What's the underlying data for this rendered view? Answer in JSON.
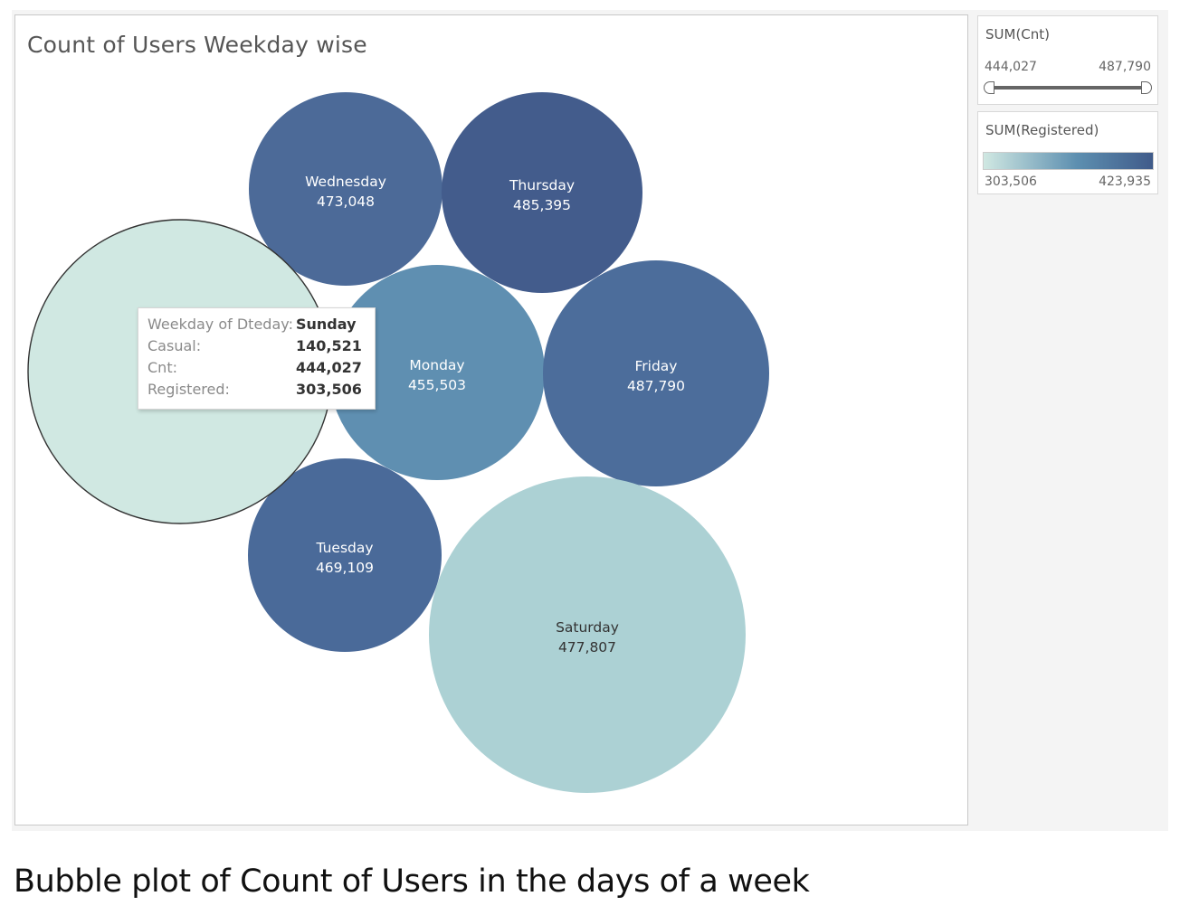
{
  "title": "Count of Users Weekday wise",
  "caption": "Bubble plot of Count of Users in the days of a week",
  "colors": {
    "min_registered": "#d0e8e2",
    "mid_registered": "#5d8fb0",
    "max_registered": "#405b8a",
    "label_light": "#ffffff",
    "label_dark": "#333333",
    "highlight_stroke": "#333333"
  },
  "chart_data": {
    "type": "bubble",
    "title": "Count of Users Weekday wise",
    "size_measure": "SUM(Cnt)",
    "color_measure": "SUM(Registered)",
    "points": [
      {
        "label": "Wednesday",
        "cnt": 473048,
        "cnt_text": "473,048",
        "color": "#4c6a98",
        "text_color": "#ffffff",
        "highlighted": false,
        "show_label": true
      },
      {
        "label": "Thursday",
        "cnt": 485395,
        "cnt_text": "485,395",
        "color": "#435c8c",
        "text_color": "#ffffff",
        "highlighted": false,
        "show_label": true
      },
      {
        "label": "Sunday",
        "cnt": 444027,
        "cnt_text": "444,027",
        "color": "#d0e8e2",
        "text_color": "#333333",
        "highlighted": true,
        "show_label": false
      },
      {
        "label": "Monday",
        "cnt": 455503,
        "cnt_text": "455,503",
        "color": "#5f8fb1",
        "text_color": "#ffffff",
        "highlighted": false,
        "show_label": true
      },
      {
        "label": "Friday",
        "cnt": 487790,
        "cnt_text": "487,790",
        "color": "#4c6d9b",
        "text_color": "#ffffff",
        "highlighted": false,
        "show_label": true
      },
      {
        "label": "Tuesday",
        "cnt": 469109,
        "cnt_text": "469,109",
        "color": "#4a6a99",
        "text_color": "#ffffff",
        "highlighted": false,
        "show_label": true
      },
      {
        "label": "Saturday",
        "cnt": 477807,
        "cnt_text": "477,807",
        "color": "#acd1d4",
        "text_color": "#333333",
        "highlighted": false,
        "show_label": true
      }
    ]
  },
  "tooltip": {
    "rows": [
      {
        "key": "Weekday of Dteday:",
        "value": "Sunday"
      },
      {
        "key": "Casual:",
        "value": "140,521"
      },
      {
        "key": "Cnt:",
        "value": "444,027"
      },
      {
        "key": "Registered:",
        "value": "303,506"
      }
    ]
  },
  "legend": {
    "cnt": {
      "title": "SUM(Cnt)",
      "min": "444,027",
      "max": "487,790"
    },
    "registered": {
      "title": "SUM(Registered)",
      "min": "303,506",
      "max": "423,935"
    }
  }
}
